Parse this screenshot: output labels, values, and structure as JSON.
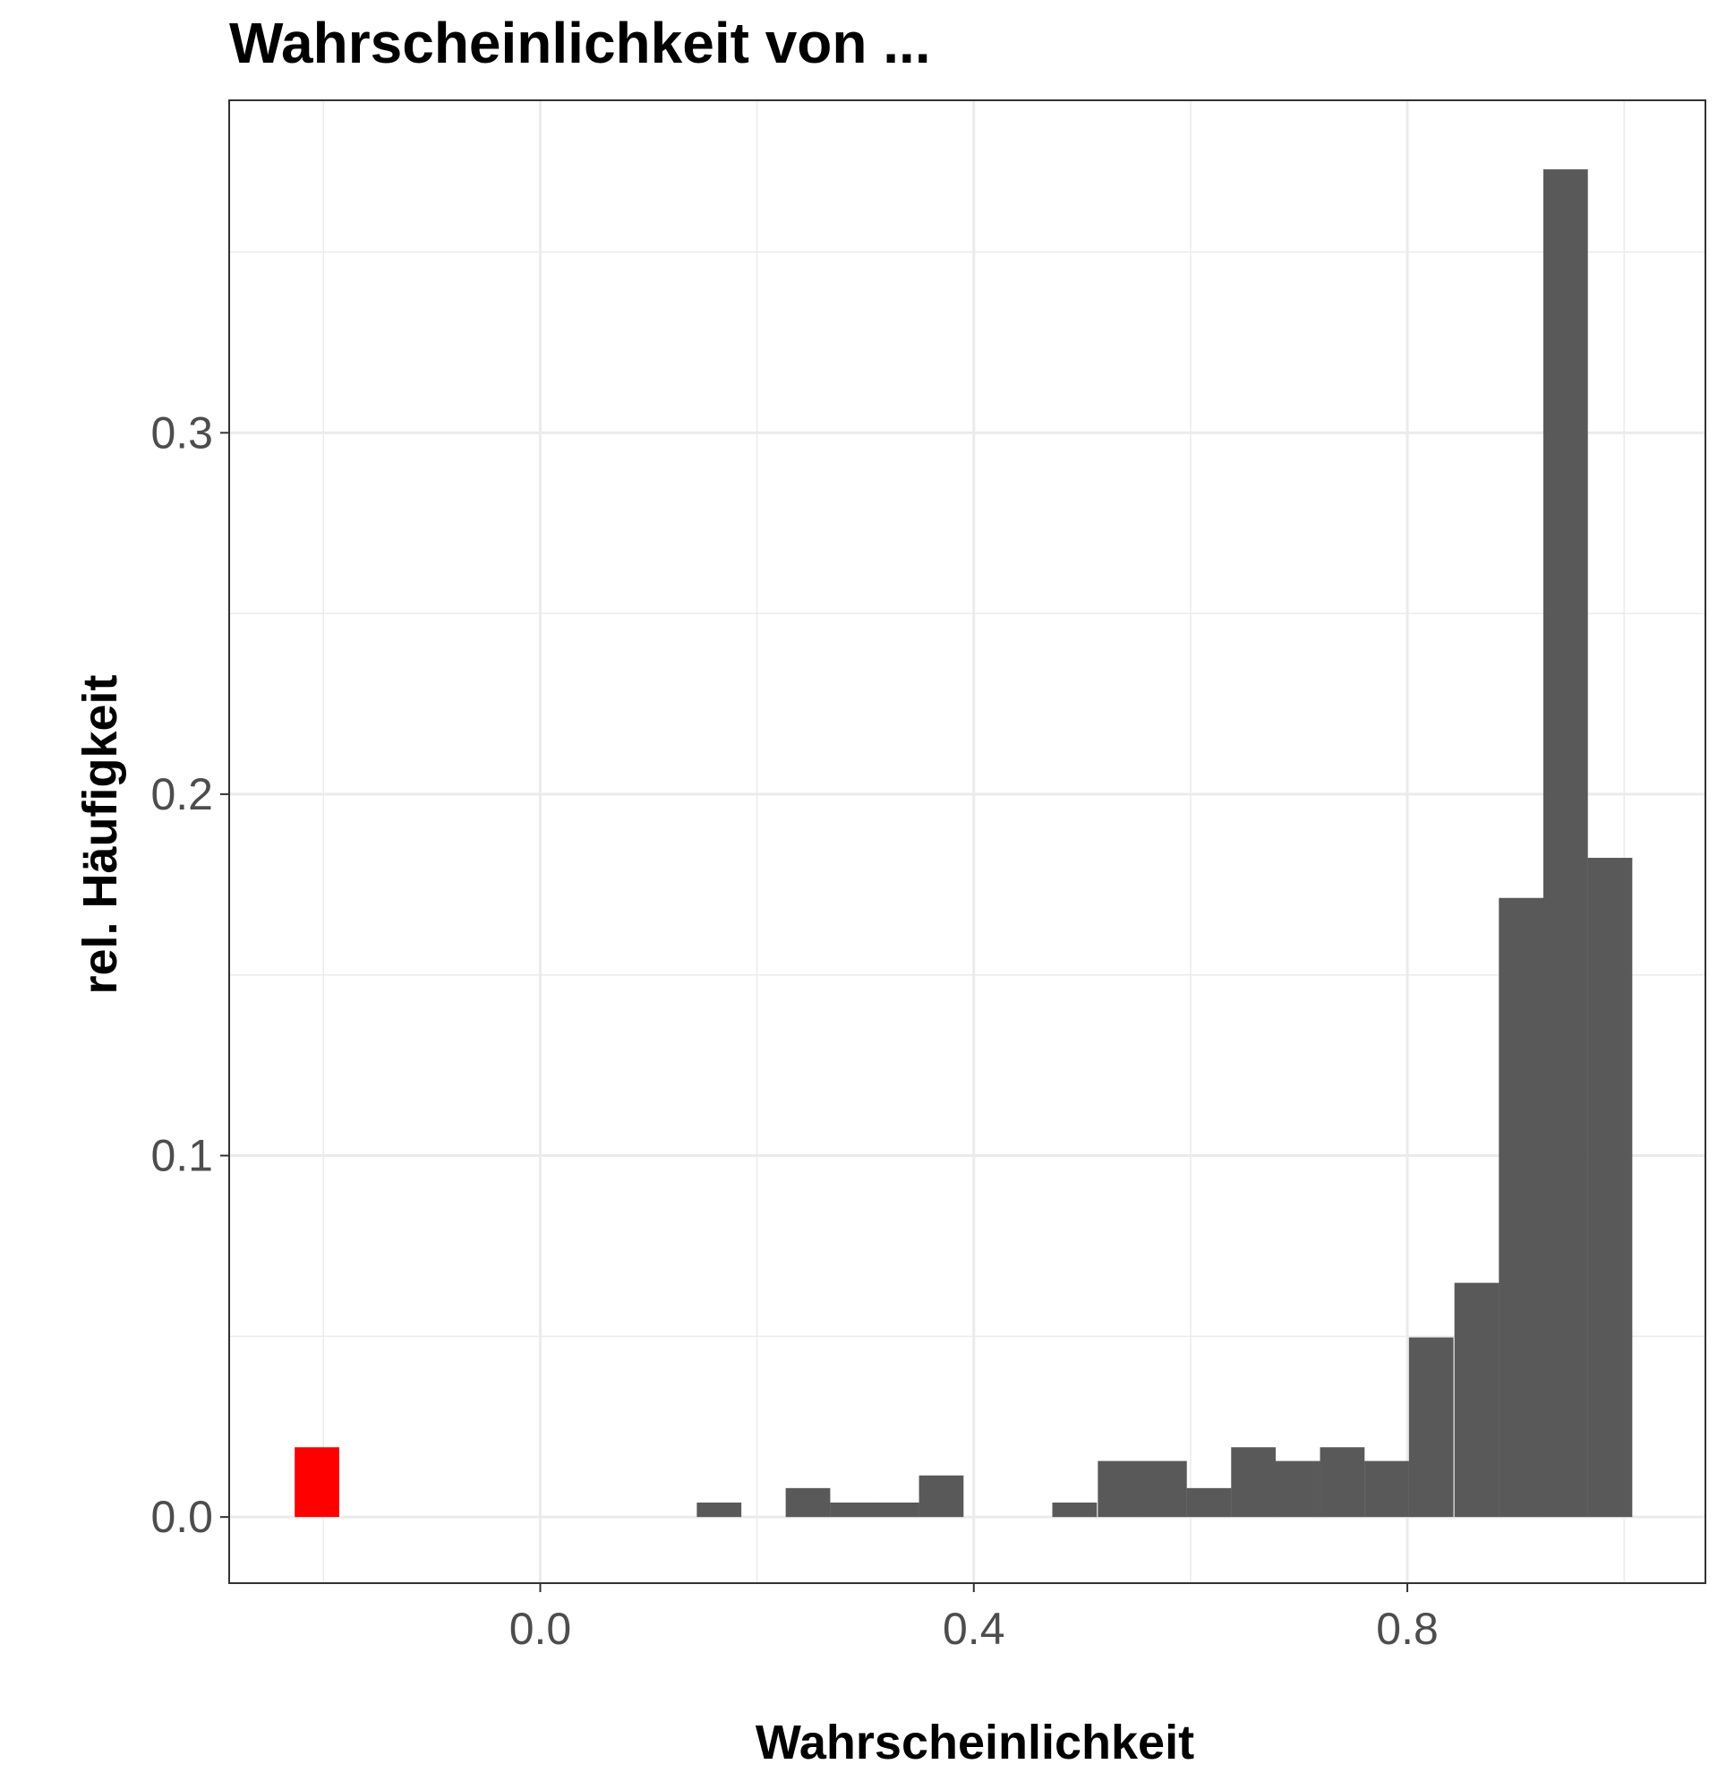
{
  "chart_data": {
    "type": "bar",
    "title": "Wahrscheinlichkeit von ...",
    "xlabel": "Wahrscheinlichkeit",
    "ylabel": "rel. Häufigkeit",
    "xlim": [
      -0.287,
      1.075
    ],
    "ylim": [
      -0.0183,
      0.392
    ],
    "x_ticks": [
      0.0,
      0.4,
      0.8
    ],
    "x_tick_labels": [
      "0.0",
      "0.4",
      "0.8"
    ],
    "y_ticks": [
      0.0,
      0.1,
      0.2,
      0.3
    ],
    "y_tick_labels": [
      "0.0",
      "0.1",
      "0.2",
      "0.3"
    ],
    "grid": true,
    "bin_width": 0.0411,
    "series": [
      {
        "color": "#595959",
        "bars": [
          {
            "x": 0.165,
            "value": 0.004
          },
          {
            "x": 0.247,
            "value": 0.008
          },
          {
            "x": 0.288,
            "value": 0.004
          },
          {
            "x": 0.329,
            "value": 0.004
          },
          {
            "x": 0.37,
            "value": 0.0115
          },
          {
            "x": 0.493,
            "value": 0.004
          },
          {
            "x": 0.535,
            "value": 0.0155
          },
          {
            "x": 0.576,
            "value": 0.0155
          },
          {
            "x": 0.617,
            "value": 0.008
          },
          {
            "x": 0.658,
            "value": 0.0193
          },
          {
            "x": 0.699,
            "value": 0.0155
          },
          {
            "x": 0.74,
            "value": 0.0193
          },
          {
            "x": 0.781,
            "value": 0.0155
          },
          {
            "x": 0.822,
            "value": 0.0497
          },
          {
            "x": 0.864,
            "value": 0.0648
          },
          {
            "x": 0.905,
            "value": 0.1713
          },
          {
            "x": 0.946,
            "value": 0.3729
          },
          {
            "x": 0.987,
            "value": 0.1824
          }
        ]
      },
      {
        "color": "#ff0000",
        "bars": [
          {
            "x": -0.206,
            "value": 0.0193
          }
        ]
      }
    ]
  }
}
